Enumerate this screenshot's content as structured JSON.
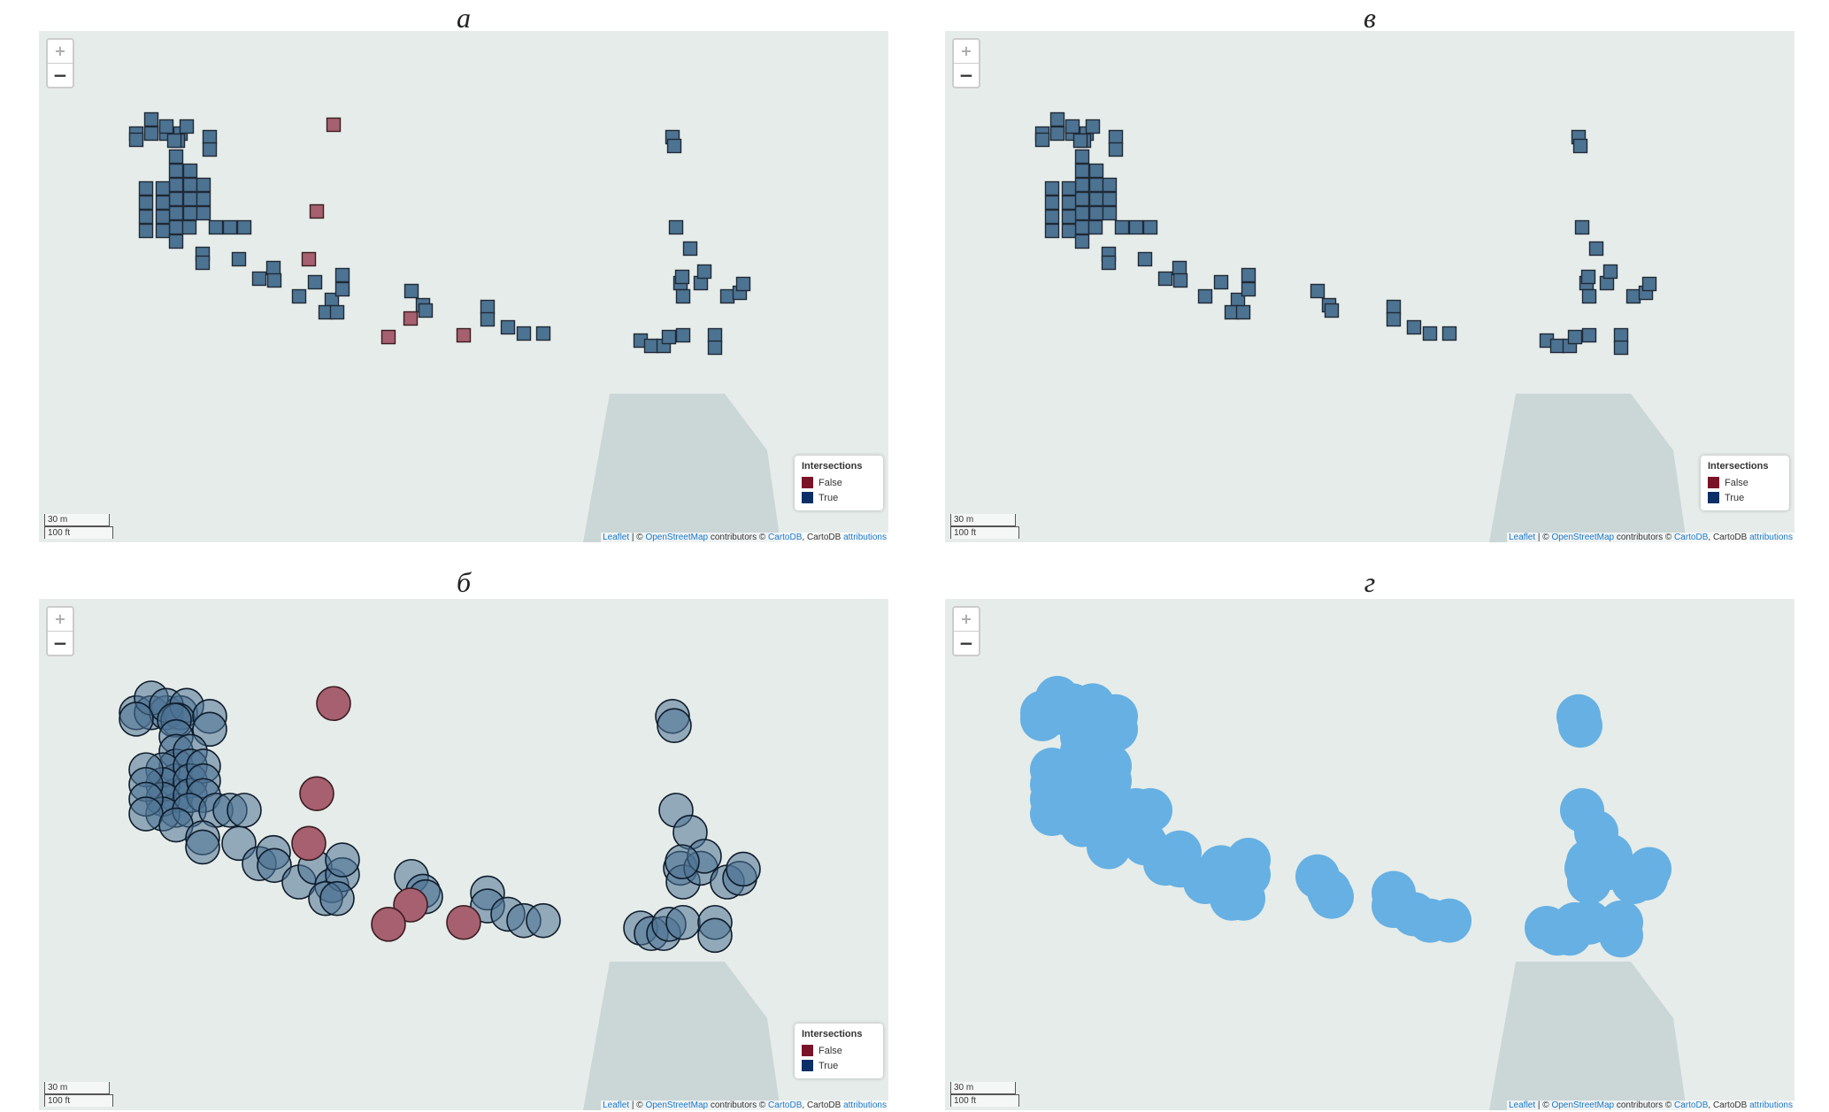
{
  "labels": {
    "a": "а",
    "b": "б",
    "v": "в",
    "g": "г"
  },
  "zoom": {
    "in": "+",
    "out": "−"
  },
  "legend": {
    "title": "Intersections",
    "items": [
      {
        "label": "False",
        "color": "#7b1327"
      },
      {
        "label": "True",
        "color": "#0b2f66"
      }
    ]
  },
  "scale": {
    "metric": "30 m",
    "imperial": "100 ft"
  },
  "attribution": {
    "leaflet": "Leaflet",
    "sep": " | © ",
    "osm": "OpenStreetMap",
    "contrib": " contributors © ",
    "carto": "CartoDB",
    "carto_plain": ", CartoDB ",
    "attributions": "attributions"
  },
  "colors": {
    "map_bg": "#e6ece9",
    "gray_area": "#cbd6d7",
    "true_fill": "#4d7393",
    "false_fill": "#a76070",
    "union_fill": "#66b0e3"
  }
}
